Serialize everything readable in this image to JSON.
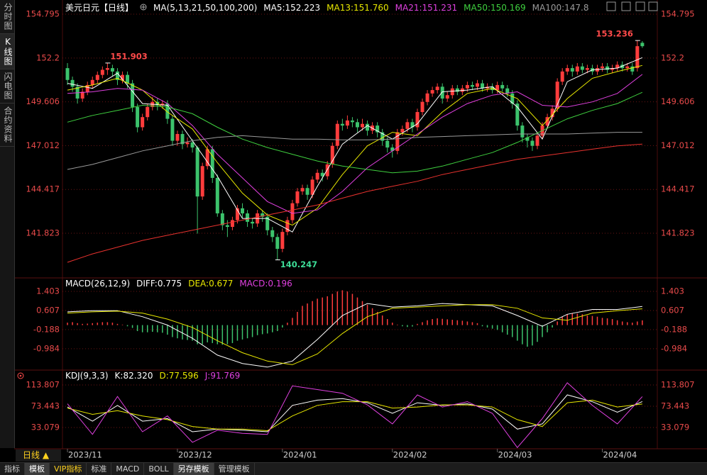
{
  "ui": {
    "sidebar": [
      "分时图",
      "K线图",
      "闪电图",
      "合约资料"
    ],
    "period": "日线 ▲",
    "tabs": [
      "指标",
      "模板",
      "VIP指标",
      "标准",
      "MACD",
      "BOLL",
      "另存模板",
      "管理模板"
    ]
  },
  "chart_data": [
    {
      "type": "candlestick",
      "title": "美元日元【日线】",
      "ma_title": "MA(5,13,21,50,100,200)",
      "up_color": "#ff3c3c",
      "down_color": "#3cc36c",
      "grid": true,
      "xlim": [
        -1,
        118
      ],
      "xticks": [
        {
          "value": 0,
          "label": "2023/11"
        },
        {
          "value": 22,
          "label": "2023/12"
        },
        {
          "value": 43,
          "label": "2024/01"
        },
        {
          "value": 65,
          "label": "2024/02"
        },
        {
          "value": 86,
          "label": "2024/03"
        },
        {
          "value": 107,
          "label": "2024/04"
        }
      ],
      "ylim": [
        139.262,
        155.215
      ],
      "yticks": [
        154.795,
        152.2,
        149.606,
        147.012,
        144.417,
        141.823
      ],
      "open": [
        151.6,
        150.9,
        150.5,
        149.8,
        150.2,
        150.6,
        150.9,
        151.2,
        151.5,
        151.6,
        151.4,
        150.9,
        151.2,
        150.7,
        149.3,
        148.1,
        148.7,
        149.3,
        149.6,
        149.4,
        149.5,
        148.6,
        147.3,
        147.7,
        147.1,
        147.2,
        146.9,
        144.0,
        145.8,
        146.8,
        145.1,
        143.0,
        142.3,
        142.2,
        142.6,
        143.3,
        143.0,
        142.5,
        142.4,
        143.0,
        142.8,
        142.0,
        141.6,
        140.9,
        141.9,
        142.6,
        143.6,
        144.3,
        144.5,
        144.1,
        145.0,
        145.4,
        145.2,
        145.9,
        147.0,
        148.3,
        148.2,
        148.5,
        148.4,
        148.1,
        148.3,
        147.9,
        148.2,
        147.8,
        147.3,
        146.9,
        146.7,
        147.8,
        148.0,
        148.4,
        148.1,
        149.0,
        149.6,
        150.1,
        150.3,
        150.5,
        149.8,
        150.0,
        150.4,
        150.2,
        150.4,
        150.6,
        150.5,
        150.7,
        150.4,
        150.5,
        150.3,
        150.6,
        150.4,
        150.1,
        149.5,
        148.2,
        147.5,
        147.3,
        147.0,
        147.6,
        148.2,
        148.7,
        149.2,
        150.8,
        151.4,
        151.6,
        151.4,
        151.7,
        151.5,
        151.6,
        151.4,
        151.6,
        151.7,
        151.5,
        151.6,
        151.8,
        151.6,
        151.7,
        151.6,
        153.1
      ],
      "high": [
        151.9,
        151.1,
        150.7,
        150.4,
        150.8,
        151.1,
        151.4,
        151.7,
        151.903,
        151.8,
        151.6,
        151.4,
        151.4,
        150.9,
        149.5,
        148.9,
        149.5,
        149.9,
        149.8,
        149.7,
        149.7,
        148.8,
        147.9,
        147.9,
        147.5,
        147.4,
        147.0,
        146.0,
        147.0,
        147.0,
        145.3,
        143.2,
        142.6,
        142.8,
        143.5,
        143.6,
        143.2,
        142.7,
        143.2,
        143.2,
        143.0,
        142.2,
        141.8,
        142.1,
        142.8,
        143.8,
        144.5,
        144.7,
        144.7,
        145.2,
        145.6,
        145.6,
        146.1,
        147.2,
        148.5,
        148.6,
        148.8,
        148.7,
        148.6,
        148.6,
        148.5,
        148.4,
        148.4,
        148.0,
        147.5,
        147.1,
        148.0,
        148.2,
        148.6,
        148.6,
        149.2,
        149.8,
        150.3,
        150.5,
        150.7,
        150.7,
        150.2,
        150.6,
        150.6,
        150.6,
        150.8,
        150.8,
        150.9,
        150.9,
        150.7,
        150.7,
        150.8,
        150.8,
        150.6,
        150.3,
        149.7,
        148.4,
        147.7,
        147.5,
        147.8,
        148.4,
        148.9,
        149.4,
        151.0,
        151.6,
        151.8,
        151.8,
        151.9,
        151.9,
        151.8,
        151.8,
        151.8,
        151.9,
        151.9,
        151.8,
        152.0,
        152.0,
        151.9,
        151.9,
        153.236,
        153.2
      ],
      "low": [
        150.6,
        150.2,
        149.5,
        149.6,
        150.0,
        150.4,
        150.7,
        151.0,
        151.2,
        151.1,
        150.6,
        150.7,
        150.4,
        149.0,
        147.8,
        147.9,
        148.5,
        149.1,
        149.1,
        149.2,
        148.3,
        147.0,
        147.0,
        146.8,
        146.9,
        146.6,
        141.8,
        143.8,
        145.6,
        144.8,
        142.8,
        142.0,
        141.6,
        142.0,
        142.4,
        142.7,
        142.2,
        142.1,
        142.2,
        142.5,
        141.7,
        141.3,
        140.247,
        140.7,
        141.7,
        142.4,
        143.4,
        144.1,
        143.8,
        143.9,
        144.8,
        144.9,
        145.0,
        145.7,
        146.8,
        147.9,
        148.0,
        148.1,
        147.8,
        147.9,
        147.6,
        147.7,
        147.5,
        147.0,
        146.6,
        146.3,
        146.5,
        147.6,
        147.8,
        147.8,
        147.9,
        148.8,
        149.4,
        149.9,
        150.1,
        149.5,
        149.6,
        149.8,
        150.0,
        150.0,
        150.2,
        150.3,
        150.3,
        150.2,
        150.2,
        150.1,
        150.1,
        150.2,
        149.9,
        149.2,
        147.9,
        147.2,
        146.9,
        146.7,
        146.8,
        147.4,
        148.0,
        148.5,
        149.0,
        150.6,
        151.2,
        151.1,
        151.2,
        151.3,
        151.3,
        151.2,
        151.2,
        151.4,
        151.3,
        151.3,
        151.4,
        151.4,
        151.4,
        151.2,
        151.4,
        152.8
      ],
      "close": [
        150.9,
        150.5,
        149.8,
        150.2,
        150.6,
        150.9,
        151.2,
        151.5,
        151.6,
        151.4,
        150.9,
        151.2,
        150.7,
        149.3,
        148.1,
        148.7,
        149.3,
        149.6,
        149.4,
        149.5,
        148.6,
        147.3,
        147.7,
        147.1,
        147.2,
        146.9,
        144.0,
        145.8,
        146.8,
        145.1,
        143.0,
        142.3,
        142.2,
        142.6,
        143.3,
        143.0,
        142.5,
        142.4,
        143.0,
        142.8,
        142.0,
        141.6,
        140.9,
        141.9,
        142.6,
        143.6,
        144.3,
        144.5,
        144.1,
        145.0,
        145.4,
        145.2,
        145.9,
        147.0,
        148.3,
        148.2,
        148.5,
        148.4,
        148.1,
        148.3,
        147.9,
        148.2,
        147.8,
        147.3,
        146.9,
        146.7,
        147.8,
        148.0,
        148.4,
        148.1,
        149.0,
        149.6,
        150.1,
        150.3,
        150.5,
        149.8,
        150.0,
        150.4,
        150.2,
        150.4,
        150.6,
        150.5,
        150.7,
        150.4,
        150.5,
        150.3,
        150.6,
        150.4,
        150.1,
        149.5,
        148.2,
        147.5,
        147.3,
        147.0,
        147.6,
        148.2,
        148.7,
        149.2,
        150.8,
        151.4,
        151.6,
        151.4,
        151.7,
        151.5,
        151.6,
        151.4,
        151.6,
        151.7,
        151.5,
        151.6,
        151.8,
        151.6,
        151.7,
        151.4,
        152.9,
        152.9
      ],
      "annotations": [
        {
          "x": 8,
          "value": 151.903,
          "color": "#ff4a4a"
        },
        {
          "x": 42,
          "value": 140.247,
          "color": "#3ddc97"
        },
        {
          "x": 114,
          "value": 153.236,
          "color": "#ff4a4a"
        }
      ],
      "line_x": [
        0,
        5,
        10,
        15,
        20,
        25,
        30,
        35,
        40,
        45,
        50,
        55,
        60,
        65,
        70,
        75,
        80,
        85,
        90,
        95,
        100,
        105,
        110,
        115
      ],
      "series": [
        {
          "name": "MA5",
          "label": "MA5:152.223",
          "color": "#ffffff",
          "values": [
            150.7,
            150.4,
            151.3,
            149.5,
            149.4,
            147.3,
            145.2,
            142.7,
            142.7,
            141.9,
            144.6,
            147.1,
            148.2,
            147.4,
            148.3,
            150.2,
            150.3,
            150.5,
            149.3,
            147.4,
            150.8,
            151.5,
            151.6,
            152.223
          ]
        },
        {
          "name": "MA13",
          "label": "MA13:151.760",
          "color": "#e8e800",
          "values": [
            150.3,
            150.6,
            151.0,
            150.3,
            149.0,
            148.0,
            146.0,
            144.2,
            142.9,
            142.3,
            143.3,
            145.3,
            147.0,
            147.8,
            147.6,
            149.0,
            150.1,
            150.4,
            149.8,
            148.2,
            149.8,
            151.0,
            151.4,
            151.76
          ]
        },
        {
          "name": "MA21",
          "label": "MA21:151.231",
          "color": "#e040e0",
          "values": [
            150.1,
            150.2,
            150.4,
            150.3,
            149.5,
            148.2,
            146.5,
            145.1,
            143.7,
            143.0,
            143.2,
            144.3,
            145.7,
            146.7,
            147.7,
            148.7,
            149.5,
            150.0,
            150.2,
            149.4,
            149.3,
            149.6,
            150.1,
            151.231
          ]
        },
        {
          "name": "MA50",
          "label": "MA50:150.169",
          "color": "#3fd03f",
          "values": [
            148.4,
            148.8,
            149.1,
            149.4,
            149.3,
            148.9,
            148.1,
            147.4,
            146.9,
            146.5,
            146.1,
            145.8,
            145.6,
            145.4,
            145.5,
            145.8,
            146.2,
            146.6,
            147.2,
            147.9,
            148.6,
            149.1,
            149.5,
            150.169
          ]
        },
        {
          "name": "MA100",
          "label": "MA100:147.8",
          "color": "#9a9a9a",
          "values": [
            145.6,
            145.9,
            146.3,
            146.7,
            147.0,
            147.3,
            147.5,
            147.6,
            147.5,
            147.4,
            147.4,
            147.35,
            147.35,
            147.4,
            147.5,
            147.55,
            147.6,
            147.65,
            147.7,
            147.7,
            147.7,
            147.75,
            147.8,
            147.8
          ]
        },
        {
          "color": "#e8322e",
          "values": [
            140.1,
            140.6,
            141.0,
            141.4,
            141.7,
            142.0,
            142.3,
            142.6,
            142.9,
            143.2,
            143.5,
            143.9,
            144.3,
            144.6,
            144.9,
            145.3,
            145.6,
            145.9,
            146.2,
            146.4,
            146.6,
            146.8,
            147.0,
            147.1
          ]
        }
      ]
    },
    {
      "type": "macd",
      "title": "MACD(26,12,9)",
      "up_color": "#ff3c3c",
      "down_color": "#3cc36c",
      "grid": true,
      "xlim": [
        -1,
        118
      ],
      "ylim": [
        -1.874,
        1.581
      ],
      "yticks": [
        1.403,
        0.607,
        -0.188,
        -0.984
      ],
      "label": "MACD:0.196",
      "label_color": "#e040e0",
      "values": [
        0.1,
        0.12,
        0.08,
        0.05,
        0.06,
        0.08,
        0.1,
        0.12,
        0.12,
        0.1,
        0.05,
        0.02,
        -0.05,
        -0.12,
        -0.25,
        -0.3,
        -0.3,
        -0.28,
        -0.3,
        -0.32,
        -0.4,
        -0.5,
        -0.55,
        -0.6,
        -0.62,
        -0.65,
        -0.8,
        -0.8,
        -0.72,
        -0.75,
        -0.8,
        -0.82,
        -0.8,
        -0.75,
        -0.65,
        -0.6,
        -0.55,
        -0.5,
        -0.42,
        -0.38,
        -0.35,
        -0.3,
        -0.25,
        -0.1,
        0.1,
        0.3,
        0.55,
        0.8,
        0.9,
        1.0,
        1.1,
        1.15,
        1.2,
        1.3,
        1.4,
        1.45,
        1.4,
        1.3,
        1.15,
        1.0,
        0.85,
        0.7,
        0.55,
        0.4,
        0.25,
        0.1,
        0.02,
        -0.05,
        -0.08,
        -0.06,
        0.05,
        0.12,
        0.2,
        0.25,
        0.28,
        0.26,
        0.24,
        0.22,
        0.2,
        0.18,
        0.15,
        0.12,
        0.08,
        -0.05,
        -0.1,
        -0.15,
        -0.2,
        -0.3,
        -0.4,
        -0.5,
        -0.65,
        -0.8,
        -0.9,
        -0.85,
        -0.7,
        -0.5,
        -0.3,
        -0.1,
        0.15,
        0.35,
        0.45,
        0.5,
        0.48,
        0.45,
        0.4,
        0.38,
        0.35,
        0.3,
        0.28,
        0.25,
        0.2,
        0.15,
        0.12,
        0.1,
        0.15,
        0.196
      ],
      "line_x": [
        0,
        5,
        10,
        15,
        20,
        25,
        30,
        35,
        40,
        45,
        50,
        55,
        60,
        65,
        70,
        75,
        80,
        85,
        90,
        95,
        100,
        105,
        110,
        115
      ],
      "series": [
        {
          "name": "DIFF",
          "label": "DIFF:0.775",
          "color": "#ffffff",
          "values": [
            0.55,
            0.6,
            0.6,
            0.35,
            0.0,
            -0.55,
            -1.25,
            -1.6,
            -1.75,
            -1.5,
            -0.6,
            0.4,
            0.9,
            0.75,
            0.8,
            0.9,
            0.85,
            0.8,
            0.4,
            -0.05,
            0.45,
            0.65,
            0.65,
            0.775
          ]
        },
        {
          "name": "DEA",
          "label": "DEA:0.677",
          "color": "#e8e800",
          "values": [
            0.5,
            0.55,
            0.58,
            0.5,
            0.25,
            -0.1,
            -0.65,
            -1.15,
            -1.5,
            -1.65,
            -1.2,
            -0.35,
            0.35,
            0.7,
            0.75,
            0.8,
            0.85,
            0.85,
            0.7,
            0.3,
            0.2,
            0.5,
            0.6,
            0.677
          ]
        }
      ]
    },
    {
      "type": "kdj",
      "title": "KDJ(9,3,3)",
      "grid": true,
      "xlim": [
        -1,
        118
      ],
      "ylim": [
        -5.94,
        120.53
      ],
      "yticks": [
        113.807,
        73.443,
        33.079
      ],
      "line_x": [
        0,
        5,
        10,
        15,
        20,
        25,
        30,
        35,
        40,
        45,
        50,
        55,
        60,
        65,
        70,
        75,
        80,
        85,
        90,
        95,
        100,
        105,
        110,
        115
      ],
      "series": [
        {
          "name": "K",
          "label": "K:82.320",
          "color": "#ffffff",
          "values": [
            72,
            45,
            75,
            45,
            50,
            25,
            30,
            28,
            25,
            75,
            85,
            88,
            80,
            60,
            80,
            75,
            78,
            68,
            30,
            40,
            95,
            82,
            62,
            82.32
          ]
        },
        {
          "name": "D",
          "label": "D:77.596",
          "color": "#e8e800",
          "values": [
            70,
            58,
            65,
            55,
            48,
            35,
            30,
            30,
            27,
            55,
            75,
            82,
            82,
            70,
            72,
            76,
            76,
            72,
            48,
            35,
            80,
            85,
            72,
            77.596
          ]
        },
        {
          "name": "J",
          "label": "J:91.769",
          "color": "#e040e0",
          "values": [
            78,
            20,
            92,
            25,
            55,
            5,
            28,
            22,
            20,
            112,
            105,
            98,
            76,
            40,
            95,
            72,
            82,
            60,
            -5,
            50,
            118,
            75,
            40,
            91.769
          ]
        }
      ]
    }
  ]
}
